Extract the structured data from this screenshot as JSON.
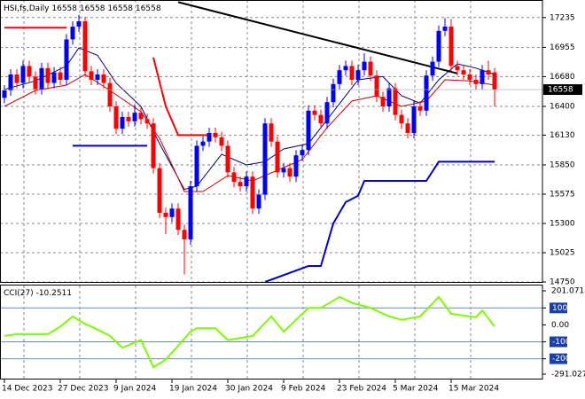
{
  "chart_data": {
    "type": "candlestick",
    "title": "HSI,fs,Daily",
    "quote": [
      16558,
      16558,
      16558,
      16558
    ],
    "last_price": 16558,
    "categories": [
      "14 Dec 2023",
      null,
      null,
      null,
      null,
      null,
      null,
      null,
      null,
      "27 Dec 2023",
      null,
      null,
      null,
      null,
      null,
      null,
      null,
      null,
      "9 Jan 2024",
      null,
      null,
      null,
      null,
      null,
      null,
      null,
      null,
      "19 Jan 2024",
      null,
      null,
      null,
      null,
      null,
      null,
      null,
      null,
      "30 Jan 2024",
      null,
      null,
      null,
      null,
      null,
      null,
      null,
      null,
      "9 Feb 2024",
      null,
      null,
      null,
      null,
      null,
      null,
      null,
      null,
      "23 Feb 2024",
      null,
      null,
      null,
      null,
      null,
      null,
      null,
      null,
      "5 Mar 2024",
      null,
      null,
      null,
      null,
      null,
      null,
      null,
      null,
      "15 Mar 2024",
      null,
      null,
      null,
      null,
      null,
      null,
      null
    ],
    "open": [
      16480,
      16550,
      16700,
      16620,
      16780,
      16680,
      16560,
      16760,
      16620,
      16720,
      16650,
      17030,
      17150,
      17200,
      16730,
      16650,
      16700,
      16620,
      16400,
      16190,
      16300,
      16260,
      16340,
      16280,
      16240,
      15820,
      15400,
      15360,
      15440,
      15240,
      15150,
      15650,
      16030,
      16070,
      16150,
      16110,
      16030,
      15780,
      15690,
      15650,
      15740,
      15440,
      15570,
      16240,
      16070,
      15780,
      15820,
      15740,
      15940,
      15990,
      16360,
      16320,
      16240,
      16440,
      16610,
      16740,
      16780,
      16650,
      16740,
      16820,
      16690,
      16490,
      16400,
      16570,
      16320,
      16240,
      16150,
      16400,
      16360,
      16690,
      16820,
      17110,
      17150,
      16780,
      16740,
      16700,
      16650,
      16610,
      16740,
      16720
    ],
    "high": [
      16600,
      16750,
      16750,
      16830,
      16830,
      16730,
      16810,
      16810,
      16770,
      16770,
      17080,
      17200,
      17260,
      17240,
      16780,
      16750,
      16750,
      16670,
      16450,
      16350,
      16350,
      16420,
      16390,
      16330,
      16290,
      15870,
      15450,
      15490,
      15490,
      15290,
      15700,
      16080,
      16120,
      16200,
      16200,
      16160,
      16080,
      15830,
      15740,
      15790,
      15790,
      15620,
      16290,
      16290,
      16120,
      15870,
      15870,
      15990,
      16040,
      16410,
      16410,
      16370,
      16490,
      16660,
      16790,
      16830,
      16830,
      16790,
      16900,
      16870,
      16740,
      16540,
      16620,
      16620,
      16370,
      16290,
      16450,
      16450,
      16740,
      16870,
      17160,
      17230,
      17220,
      16830,
      16790,
      16750,
      16700,
      16790,
      16830,
      16760
    ],
    "low": [
      16430,
      16500,
      16570,
      16570,
      16630,
      16510,
      16510,
      16570,
      16570,
      16600,
      16600,
      16980,
      17100,
      16680,
      16600,
      16600,
      16570,
      16350,
      16140,
      16140,
      16210,
      16210,
      16230,
      16190,
      15770,
      15350,
      15200,
      15310,
      15190,
      14820,
      15100,
      15600,
      15980,
      16020,
      16060,
      15980,
      15730,
      15640,
      15600,
      15600,
      15390,
      15390,
      15520,
      16020,
      15730,
      15730,
      15690,
      15690,
      15890,
      15940,
      16270,
      16190,
      16190,
      16390,
      16560,
      16690,
      16600,
      16600,
      16690,
      16640,
      16440,
      16350,
      16350,
      16270,
      16190,
      16100,
      16100,
      16310,
      16310,
      16640,
      16770,
      17060,
      16730,
      16690,
      16650,
      16600,
      16560,
      16560,
      16650,
      16400
    ],
    "close": [
      16550,
      16700,
      16620,
      16780,
      16680,
      16560,
      16760,
      16620,
      16720,
      16650,
      17030,
      17150,
      17200,
      16730,
      16650,
      16700,
      16620,
      16400,
      16190,
      16300,
      16260,
      16340,
      16280,
      16240,
      15820,
      15400,
      15360,
      15440,
      15240,
      15150,
      15650,
      16030,
      16070,
      16150,
      16110,
      16030,
      15780,
      15690,
      15650,
      15740,
      15440,
      15570,
      16240,
      16070,
      15780,
      15820,
      15740,
      15940,
      15990,
      16360,
      16320,
      16240,
      16440,
      16610,
      16740,
      16780,
      16650,
      16740,
      16820,
      16690,
      16490,
      16400,
      16570,
      16320,
      16240,
      16150,
      16400,
      16360,
      16690,
      16820,
      17110,
      17150,
      16780,
      16740,
      16700,
      16650,
      16610,
      16740,
      16700,
      16558
    ],
    "bull_color": "#0000ff",
    "bear_color": "#ff0000",
    "ylim": [
      14750,
      17400
    ],
    "yticks": [
      17235,
      16955,
      16680,
      16400,
      16130,
      15850,
      15575,
      15300,
      15025,
      14750
    ],
    "grid": true,
    "overlays": [
      {
        "color": "#000080",
        "width": 1,
        "x": [
          0,
          5,
          10,
          12,
          15,
          18,
          22,
          25,
          29,
          31,
          35,
          39,
          42,
          45,
          49,
          53,
          57,
          61,
          64,
          67,
          70,
          73,
          76,
          79
        ],
        "values": [
          16560,
          16640,
          16780,
          16950,
          16880,
          16620,
          16400,
          16050,
          15620,
          15650,
          15950,
          15850,
          15880,
          16000,
          16050,
          16350,
          16650,
          16680,
          16500,
          16430,
          16650,
          16800,
          16760,
          16700
        ]
      },
      {
        "color": "#cc0000",
        "width": 1,
        "x": [
          0,
          5,
          10,
          13,
          17,
          22,
          25,
          29,
          32,
          36,
          40,
          44,
          48,
          52,
          56,
          60,
          64,
          68,
          71,
          75,
          79
        ],
        "values": [
          16400,
          16550,
          16600,
          16700,
          16550,
          16350,
          16100,
          15600,
          15600,
          15750,
          15700,
          15800,
          15900,
          16200,
          16450,
          16500,
          16400,
          16450,
          16650,
          16640,
          16600
        ]
      },
      {
        "color": "#ff0000",
        "width": 2,
        "x": [
          0,
          10
        ],
        "values": [
          17140,
          17140
        ]
      },
      {
        "color": "#ff0000",
        "width": 2,
        "x": [
          24,
          26,
          28,
          33
        ],
        "values": [
          16860,
          16400,
          16130,
          16130
        ]
      },
      {
        "color": "#0000cc",
        "width": 2,
        "x": [
          11,
          23
        ],
        "values": [
          16030,
          16030
        ]
      },
      {
        "color": "#0000cc",
        "width": 2,
        "x": [
          42,
          49,
          51,
          53,
          55,
          57,
          58,
          68,
          70,
          79
        ],
        "values": [
          14750,
          14900,
          14900,
          15300,
          15500,
          15560,
          15700,
          15700,
          15880,
          15880
        ]
      },
      {
        "color": "#000000",
        "width": 2,
        "x": [
          28,
          73
        ],
        "values": [
          17380,
          16710
        ]
      }
    ],
    "cci": {
      "title": "CCI(27)",
      "value": -10.2511,
      "color": "#7cfc00",
      "x": [
        0,
        2,
        7,
        9,
        11,
        13,
        14,
        17,
        19,
        22,
        24,
        26,
        30,
        31,
        34,
        36,
        40,
        43,
        45,
        49,
        51,
        54,
        56,
        59,
        62,
        64,
        67,
        70,
        72,
        76,
        77,
        79
      ],
      "values": [
        -65,
        -55,
        -55,
        -10,
        50,
        5,
        -10,
        -65,
        -135,
        -90,
        -250,
        -205,
        -40,
        -20,
        -20,
        -90,
        -65,
        50,
        -40,
        100,
        100,
        165,
        130,
        100,
        50,
        30,
        50,
        165,
        65,
        45,
        85,
        -10
      ],
      "ylim": [
        -291.0274,
        201.0718
      ],
      "yticks": [
        201.0718,
        100,
        {
          "value": 0,
          "label": "0.00"
        },
        -100,
        -200,
        -291.0274
      ],
      "levels": [
        100,
        -100,
        -200
      ]
    }
  }
}
